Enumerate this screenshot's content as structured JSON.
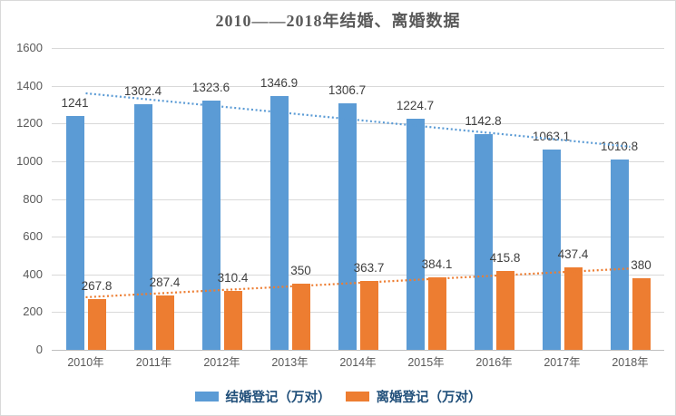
{
  "title": "2010——2018年结婚、离婚数据",
  "chart_data": {
    "type": "bar",
    "title": "2010——2018年结婚、离婚数据",
    "categories": [
      "2010年",
      "2011年",
      "2012年",
      "2013年",
      "2014年",
      "2015年",
      "2016年",
      "2017年",
      "2018年"
    ],
    "series": [
      {
        "name": "结婚登记（万对）",
        "color": "#5B9BD5",
        "values": [
          1241,
          1302.4,
          1323.6,
          1346.9,
          1306.7,
          1224.7,
          1142.8,
          1063.1,
          1010.8
        ]
      },
      {
        "name": "离婚登记（万对）",
        "color": "#ED7D31",
        "values": [
          267.8,
          287.4,
          310.4,
          350,
          363.7,
          384.1,
          415.8,
          437.4,
          380
        ]
      }
    ],
    "trendlines": [
      {
        "series": "结婚登记（万对）",
        "style": "dotted",
        "color": "#5B9BD5",
        "start_value": 1360,
        "end_value": 1077
      },
      {
        "series": "离婚登记（万对）",
        "style": "dotted",
        "color": "#ED7D31",
        "start_value": 279,
        "end_value": 431
      }
    ],
    "xlabel": "",
    "ylabel": "",
    "ylim": [
      0,
      1600
    ],
    "yticks": [
      0,
      200,
      400,
      600,
      800,
      1000,
      1200,
      1400,
      1600
    ],
    "grid": true,
    "legend_position": "bottom",
    "data_labels": true
  },
  "colors": {
    "marriage_bar": "#5B9BD5",
    "divorce_bar": "#ED7D31",
    "gridline": "#D9D9D9",
    "axis_text": "#595959",
    "data_label_text": "#404040",
    "title_text": "#595959",
    "legend_text": "#1F4E79",
    "border": "#D9D9D9"
  }
}
